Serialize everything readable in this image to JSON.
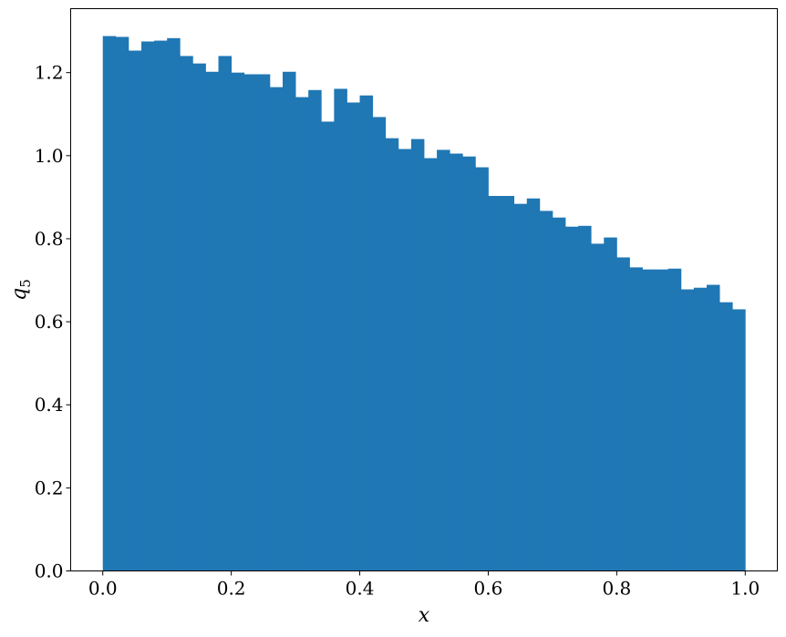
{
  "chart_data": {
    "type": "bar",
    "subtype": "histogram",
    "xlabel": "x",
    "ylabel": "q",
    "ylabel_subscript": "5",
    "xlim": [
      -0.05,
      1.05
    ],
    "ylim": [
      0,
      1.354
    ],
    "grid": false,
    "bar_color": "#1f77b4",
    "bin_edges_range": [
      0,
      1
    ],
    "bin_count": 50,
    "values": [
      1.288,
      1.286,
      1.253,
      1.275,
      1.277,
      1.283,
      1.24,
      1.222,
      1.202,
      1.24,
      1.2,
      1.196,
      1.196,
      1.165,
      1.202,
      1.141,
      1.158,
      1.082,
      1.161,
      1.128,
      1.145,
      1.093,
      1.042,
      1.016,
      1.04,
      0.994,
      1.014,
      1.005,
      0.998,
      0.972,
      0.903,
      0.903,
      0.884,
      0.897,
      0.867,
      0.851,
      0.829,
      0.831,
      0.788,
      0.803,
      0.755,
      0.731,
      0.726,
      0.726,
      0.728,
      0.678,
      0.682,
      0.689,
      0.647,
      0.63
    ],
    "xticks": [
      "0.0",
      "0.2",
      "0.4",
      "0.6",
      "0.8",
      "1.0"
    ],
    "yticks": [
      "0.0",
      "0.2",
      "0.4",
      "0.6",
      "0.8",
      "1.0",
      "1.2"
    ]
  }
}
